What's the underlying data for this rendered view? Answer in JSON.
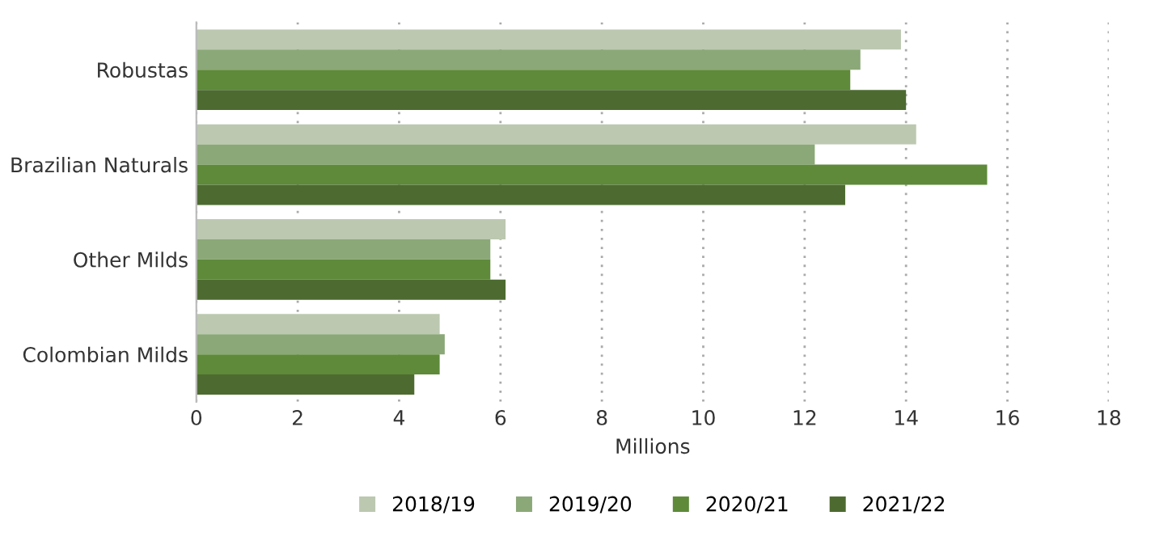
{
  "chart_data": {
    "type": "bar",
    "orientation": "horizontal",
    "xlabel": "Millions",
    "categories": [
      "Robustas",
      "Brazilian Naturals",
      "Other Milds",
      "Colombian Milds"
    ],
    "series": [
      {
        "name": "2018/19",
        "color": "#bcc8b0",
        "values": [
          13.9,
          14.2,
          6.1,
          4.8
        ]
      },
      {
        "name": "2019/20",
        "color": "#8ba878",
        "values": [
          13.1,
          12.2,
          5.8,
          4.9
        ]
      },
      {
        "name": "2020/21",
        "color": "#5e8a3a",
        "values": [
          12.9,
          15.6,
          5.8,
          4.8
        ]
      },
      {
        "name": "2021/22",
        "color": "#4d6b30",
        "values": [
          14.0,
          12.8,
          6.1,
          4.3
        ]
      }
    ],
    "xlim": [
      0,
      18
    ],
    "xticks": [
      0,
      2,
      4,
      6,
      8,
      10,
      12,
      14,
      16,
      18
    ],
    "grid": "x",
    "legend": "bottom"
  }
}
